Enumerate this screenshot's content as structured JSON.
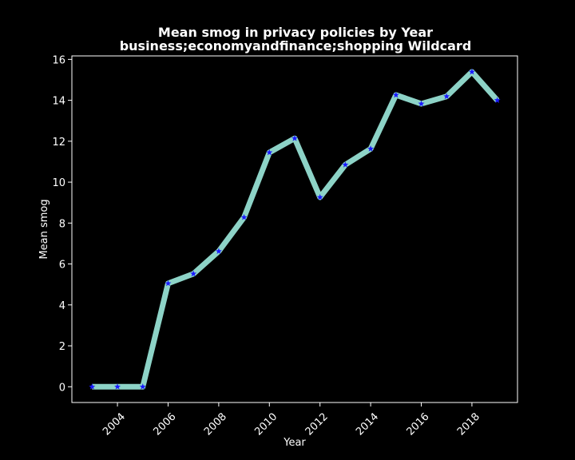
{
  "chart_data": {
    "type": "line",
    "title": "Mean smog in privacy policies by Year",
    "subtitle": "business;economyandfinance;shopping Wildcard",
    "xlabel": "Year",
    "ylabel": "Mean smog",
    "x": [
      2003,
      2004,
      2005,
      2006,
      2007,
      2008,
      2009,
      2010,
      2011,
      2012,
      2013,
      2014,
      2015,
      2016,
      2017,
      2018,
      2019
    ],
    "series": [
      {
        "values": [
          0,
          0,
          0,
          5.05,
          5.52,
          6.62,
          8.28,
          11.45,
          12.14,
          9.26,
          10.85,
          11.63,
          14.26,
          13.83,
          14.19,
          15.39,
          14.0
        ]
      }
    ],
    "xticks": [
      "2004",
      "2006",
      "2008",
      "2010",
      "2012",
      "2014",
      "2016",
      "2018"
    ],
    "yticks": [
      "0",
      "2",
      "4",
      "6",
      "8",
      "10",
      "12",
      "14",
      "16"
    ],
    "xlim": [
      2002.2,
      2019.8
    ],
    "ylim": [
      -0.77,
      16.17
    ],
    "grid": false,
    "legend": "none",
    "colors": {
      "background": "#000000",
      "line": "#8dd3c7",
      "marker": "#1a1aff",
      "axes": "#ffffff",
      "text": "#ffffff"
    }
  }
}
